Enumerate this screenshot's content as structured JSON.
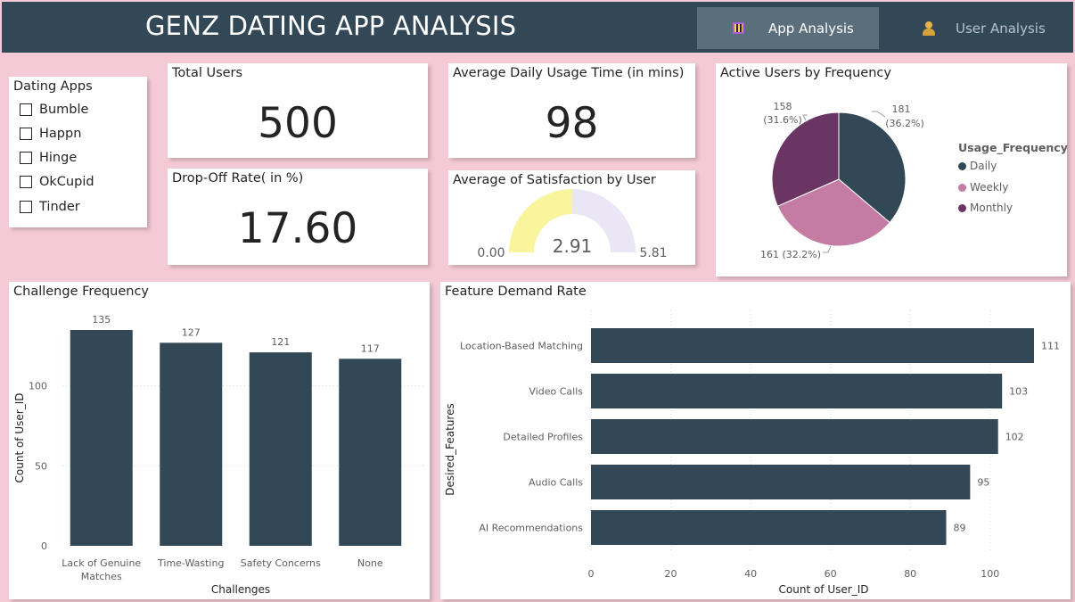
{
  "header": {
    "title": "GENZ DATING APP ANALYSIS",
    "nav": [
      {
        "label": "App Analysis",
        "active": true
      },
      {
        "label": "User Analysis",
        "active": false
      }
    ]
  },
  "slicer": {
    "title": "Dating Apps",
    "items": [
      "Bumble",
      "Happn",
      "Hinge",
      "OkCupid",
      "Tinder"
    ]
  },
  "kpis": {
    "total_users": {
      "title": "Total Users",
      "value": "500"
    },
    "avg_usage": {
      "title": "Average Daily Usage Time (in mins)",
      "value": "98"
    },
    "drop_off": {
      "title": "Drop-Off Rate( in %)",
      "value": "17.60"
    }
  },
  "gauge": {
    "title": "Average of Satisfaction by User",
    "min_label": "0.00",
    "max_label": "5.81",
    "value_label": "2.91",
    "min": 0,
    "max": 5.81,
    "value": 2.91,
    "fill_color": "#f9f59c",
    "track_color": "#ebe6f5"
  },
  "chart_data": [
    {
      "type": "pie",
      "title": "Active Users by Frequency",
      "legend_title": "Usage_Frequency",
      "legend_position": "right",
      "slices": [
        {
          "name": "Daily",
          "value": 181,
          "label": "181",
          "pct_label": "(36.2%)",
          "color": "#334856"
        },
        {
          "name": "Weekly",
          "value": 161,
          "label": "161 (32.2%)",
          "pct_label": "",
          "color": "#c47ba4"
        },
        {
          "name": "Monthly",
          "value": 158,
          "label": "158",
          "pct_label": "(31.6%)",
          "color": "#6a3463"
        }
      ]
    },
    {
      "type": "bar",
      "title": "Challenge Frequency",
      "xlabel": "Challenges",
      "ylabel": "Count of User_ID",
      "categories": [
        [
          "Lack of Genuine",
          "Matches"
        ],
        [
          "Time-Wasting"
        ],
        [
          "Safety Concerns"
        ],
        [
          "None"
        ]
      ],
      "values": [
        135,
        127,
        121,
        117
      ],
      "ylim": [
        0,
        135
      ],
      "yticks": [
        0,
        50,
        100
      ],
      "grid": true,
      "color": "#334856"
    },
    {
      "type": "bar",
      "orientation": "horizontal",
      "title": "Feature Demand Rate",
      "xlabel": "Count of User_ID",
      "ylabel": "Desired_Features",
      "categories": [
        "Location-Based Matching",
        "Video Calls",
        "Detailed Profiles",
        "Audio Calls",
        "AI Recommendations"
      ],
      "values": [
        111,
        103,
        102,
        95,
        89
      ],
      "xlim": [
        0,
        111
      ],
      "xticks": [
        0,
        20,
        40,
        60,
        80,
        100
      ],
      "grid": true,
      "color": "#334856"
    }
  ]
}
